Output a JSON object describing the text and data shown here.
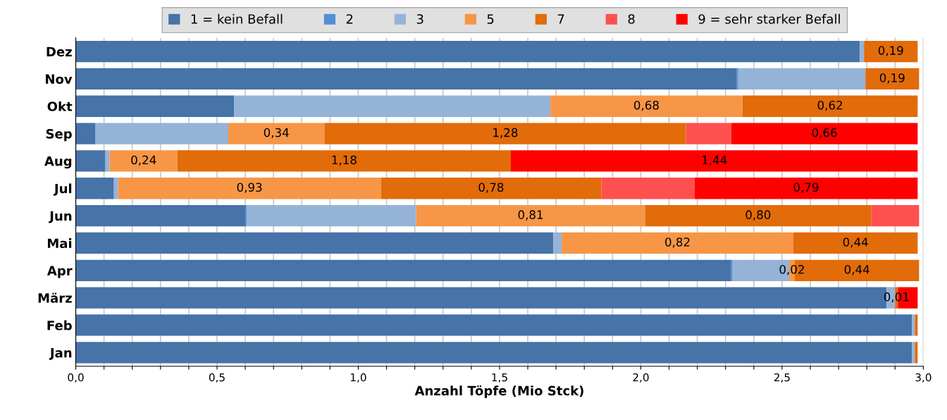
{
  "chart_data": {
    "type": "bar",
    "orientation": "horizontal",
    "stacked": true,
    "categories": [
      "Dez",
      "Nov",
      "Okt",
      "Sep",
      "Aug",
      "Jul",
      "Jun",
      "Mai",
      "Apr",
      "März",
      "Feb",
      "Jan"
    ],
    "xlabel": "Anzahl Töpfe (Mio Stck)",
    "xlim": [
      0,
      3.0
    ],
    "xticks": [
      {
        "value": 0,
        "label": "0,0"
      },
      {
        "value": 0.1,
        "label": null
      },
      {
        "value": 0.2,
        "label": null
      },
      {
        "value": 0.3,
        "label": null
      },
      {
        "value": 0.4,
        "label": null
      },
      {
        "value": 0.5,
        "label": "0,5"
      },
      {
        "value": 0.6,
        "label": null
      },
      {
        "value": 0.7,
        "label": null
      },
      {
        "value": 0.8,
        "label": null
      },
      {
        "value": 0.9,
        "label": null
      },
      {
        "value": 1.0,
        "label": "1,0"
      },
      {
        "value": 1.1,
        "label": null
      },
      {
        "value": 1.2,
        "label": null
      },
      {
        "value": 1.3,
        "label": null
      },
      {
        "value": 1.4,
        "label": null
      },
      {
        "value": 1.5,
        "label": "1,5"
      },
      {
        "value": 1.6,
        "label": null
      },
      {
        "value": 1.7,
        "label": null
      },
      {
        "value": 1.8,
        "label": null
      },
      {
        "value": 1.9,
        "label": null
      },
      {
        "value": 2.0,
        "label": "2,0"
      },
      {
        "value": 2.1,
        "label": null
      },
      {
        "value": 2.2,
        "label": null
      },
      {
        "value": 2.3,
        "label": null
      },
      {
        "value": 2.4,
        "label": null
      },
      {
        "value": 2.5,
        "label": "2,5"
      },
      {
        "value": 2.6,
        "label": null
      },
      {
        "value": 2.7,
        "label": null
      },
      {
        "value": 2.8,
        "label": null
      },
      {
        "value": 2.9,
        "label": null
      },
      {
        "value": 3.0,
        "label": "3,0"
      }
    ],
    "grid": "x",
    "legend": "top",
    "series": [
      {
        "name": "1 = kein Befall",
        "color": "#4673a8",
        "values": [
          2.775,
          2.34,
          0.56,
          0.07,
          0.105,
          0.135,
          0.6,
          1.69,
          2.32,
          2.87,
          2.96,
          2.96
        ]
      },
      {
        "name": "2",
        "color": "#558ed5",
        "values": [
          0,
          0.005,
          0,
          0,
          0,
          0,
          0.005,
          0,
          0.005,
          0,
          0,
          0
        ]
      },
      {
        "name": "3",
        "color": "#95b3d7",
        "values": [
          0.015,
          0.45,
          1.12,
          0.47,
          0.015,
          0.015,
          0.6,
          0.03,
          0.2,
          0.03,
          0.01,
          0.01
        ]
      },
      {
        "name": "5",
        "color": "#f79646",
        "values": [
          0,
          0,
          0.68,
          0.34,
          0.24,
          0.93,
          0.81,
          0.82,
          0.02,
          0,
          0,
          0
        ],
        "value_labels": [
          null,
          null,
          "0,68",
          "0,34",
          "0,24",
          "0,93",
          "0,81",
          "0,82",
          "0,02",
          null,
          null,
          null
        ]
      },
      {
        "name": "7",
        "color": "#e26b0a",
        "values": [
          0.19,
          0.19,
          0.62,
          1.28,
          1.18,
          0.78,
          0.8,
          0.44,
          0.44,
          0.01,
          0.01,
          0.01
        ],
        "value_labels": [
          "0,19",
          "0,19",
          "0,62",
          "1,28",
          "1,18",
          "0,78",
          "0,80",
          "0,44",
          "0,44",
          "0,01",
          null,
          null
        ]
      },
      {
        "name": "8",
        "color": "#ff5050",
        "values": [
          0,
          0,
          0,
          0.16,
          0,
          0.33,
          0.17,
          0,
          0,
          0,
          0,
          0
        ]
      },
      {
        "name": "9 = sehr starker Befall",
        "color": "#ff0000",
        "values": [
          0,
          0,
          0,
          0.66,
          1.44,
          0.79,
          0,
          0,
          0,
          0.07,
          0,
          0
        ],
        "value_labels": [
          null,
          null,
          null,
          "0,66",
          "1,44",
          "0,79",
          null,
          null,
          null,
          null,
          null,
          null
        ]
      }
    ]
  }
}
